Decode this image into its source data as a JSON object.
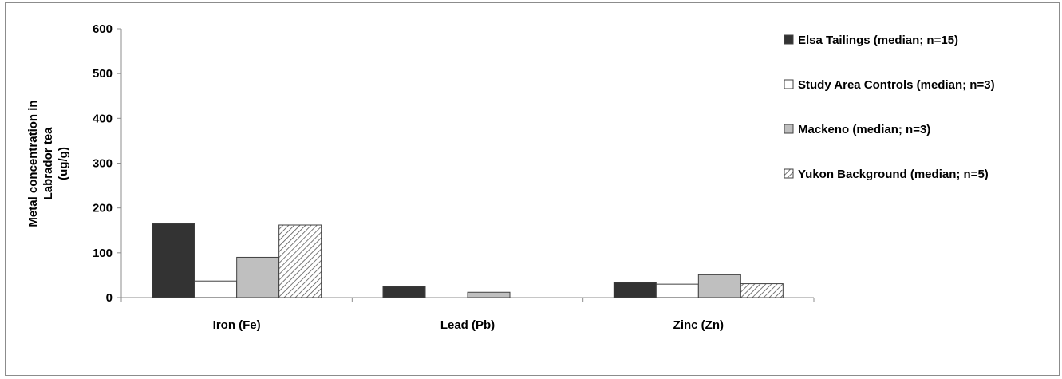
{
  "chart_data": {
    "type": "bar",
    "ylabel_lines": [
      "Metal concentration in",
      "Labrador tea",
      "(ug/g)"
    ],
    "xlabel": "",
    "ylim": [
      0,
      600
    ],
    "yticks": [
      0,
      100,
      200,
      300,
      400,
      500,
      600
    ],
    "categories": [
      "Iron (Fe)",
      "Lead (Pb)",
      "Zinc (Zn)"
    ],
    "series": [
      {
        "name": "Elsa Tailings (median; n=15)",
        "values": [
          165,
          25,
          34
        ],
        "fill": "#333333",
        "pattern": "solid"
      },
      {
        "name": "Study Area Controls (median; n=3)",
        "values": [
          37,
          0,
          30
        ],
        "fill": "#ffffff",
        "pattern": "solid"
      },
      {
        "name": "Mackeno (median; n=3)",
        "values": [
          90,
          12,
          51
        ],
        "fill": "#bfbfbf",
        "pattern": "solid"
      },
      {
        "name": "Yukon Background (median; n=5)",
        "values": [
          162,
          0,
          31
        ],
        "fill": "#ffffff",
        "pattern": "hatch"
      }
    ],
    "grid": false,
    "legend_position": "right"
  }
}
